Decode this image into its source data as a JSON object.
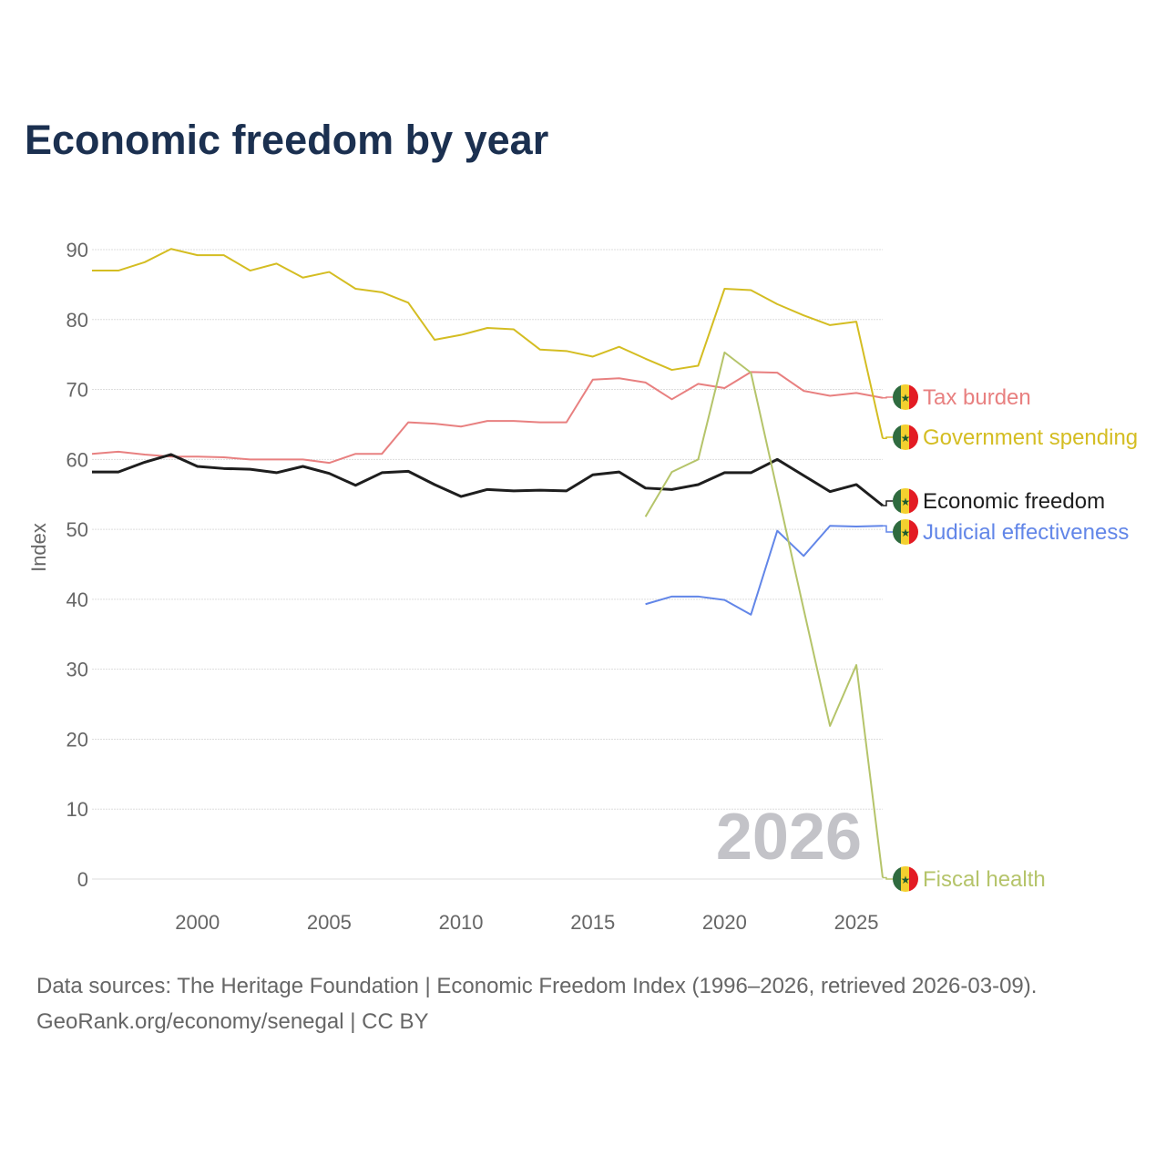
{
  "title": "Economic freedom by year",
  "footer": {
    "line1": "Data sources: The Heritage Foundation | Economic Freedom Index (1996–2026, retrieved 2026-03-09).",
    "line2": "GeoRank.org/economy/senegal | CC BY"
  },
  "chart_data": {
    "type": "line",
    "title": "Economic freedom by year",
    "xlabel": "",
    "ylabel": "Index",
    "xlim": [
      1996,
      2026
    ],
    "ylim": [
      0,
      90
    ],
    "xticks": [
      2000,
      2005,
      2010,
      2015,
      2020,
      2025
    ],
    "yticks": [
      0,
      10,
      20,
      30,
      40,
      50,
      60,
      70,
      80,
      90
    ],
    "grid": true,
    "watermark_year": "2026",
    "legend_placement": "right-inline",
    "flag_icon": "senegal-flag",
    "series": [
      {
        "name": "Tax burden",
        "color": "#e88080",
        "width": 2,
        "start": 1996,
        "values": [
          60.8,
          61.1,
          60.7,
          60.4,
          60.4,
          60.3,
          60.0,
          60.0,
          60.0,
          59.5,
          60.8,
          60.8,
          65.3,
          65.1,
          64.7,
          65.5,
          65.5,
          65.3,
          65.3,
          71.4,
          71.6,
          71.0,
          68.6,
          70.8,
          70.2,
          72.5,
          72.4,
          69.8,
          69.1,
          69.5,
          68.8
        ]
      },
      {
        "name": "Government spending",
        "color": "#d4bd22",
        "width": 2,
        "start": 1996,
        "values": [
          87.0,
          87.0,
          88.2,
          90.1,
          89.2,
          89.2,
          87.0,
          88.0,
          86.0,
          86.8,
          84.4,
          83.9,
          82.4,
          77.1,
          77.8,
          78.8,
          78.6,
          75.7,
          75.5,
          74.7,
          76.1,
          74.4,
          72.8,
          73.4,
          84.4,
          84.2,
          82.2,
          80.6,
          79.2,
          79.7,
          63.0
        ]
      },
      {
        "name": "Economic freedom",
        "color": "#1e1e1e",
        "width": 3,
        "start": 1996,
        "values": [
          58.2,
          58.2,
          59.6,
          60.7,
          59.0,
          58.7,
          58.6,
          58.1,
          59.0,
          58.0,
          56.3,
          58.1,
          58.3,
          56.4,
          54.7,
          55.7,
          55.5,
          55.6,
          55.5,
          57.8,
          58.2,
          55.9,
          55.7,
          56.4,
          58.1,
          58.1,
          60.0,
          57.7,
          55.4,
          56.4,
          53.4
        ]
      },
      {
        "name": "Judicial effectiveness",
        "color": "#6286e8",
        "width": 2,
        "start": 2017,
        "values": [
          39.3,
          40.4,
          40.4,
          39.9,
          37.8,
          49.8,
          46.2,
          50.5,
          50.4,
          50.5
        ]
      },
      {
        "name": "Fiscal health",
        "color": "#b5c46a",
        "width": 2,
        "start": 2017,
        "values": [
          51.8,
          58.2,
          60.0,
          75.3,
          72.4,
          55.5,
          38.6,
          21.9,
          30.6,
          0.2
        ]
      }
    ]
  }
}
